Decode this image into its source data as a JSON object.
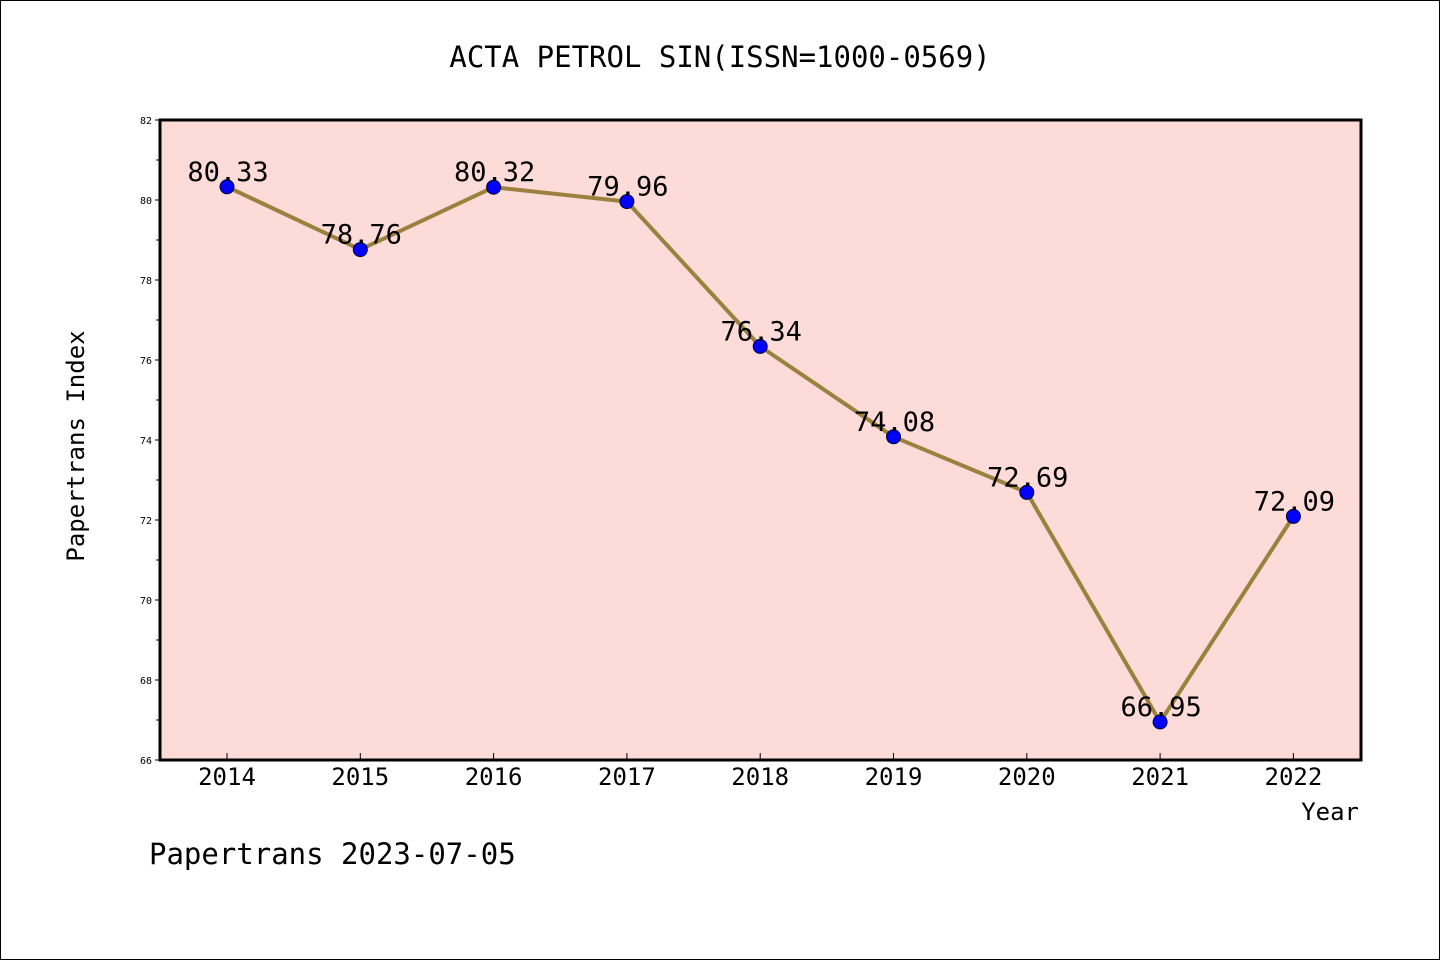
{
  "chart_data": {
    "type": "line",
    "title": "ACTA PETROL SIN(ISSN=1000-0569)",
    "xlabel": "Year",
    "ylabel": "Papertrans Index",
    "categories": [
      "2014",
      "2015",
      "2016",
      "2017",
      "2018",
      "2019",
      "2020",
      "2021",
      "2022"
    ],
    "series": [
      {
        "values": [
          80.33,
          78.76,
          80.32,
          79.96,
          76.34,
          74.08,
          72.69,
          66.95,
          72.09
        ]
      }
    ],
    "data_labels": [
      "80.33",
      "78.76",
      "80.32",
      "79.96",
      "76.34",
      "74.08",
      "72.69",
      "66.95",
      "72.09"
    ],
    "ylim": [
      66,
      82
    ],
    "y_ticks": [
      "66",
      "68",
      "70",
      "72",
      "74",
      "76",
      "78",
      "80",
      "82"
    ],
    "grid": false,
    "colors": {
      "plot_background": "#fddbd8",
      "line": "#9b813d",
      "marker": "#0000ff",
      "frame": "#000000"
    }
  },
  "footer": {
    "text": "Papertrans 2023-07-05"
  }
}
